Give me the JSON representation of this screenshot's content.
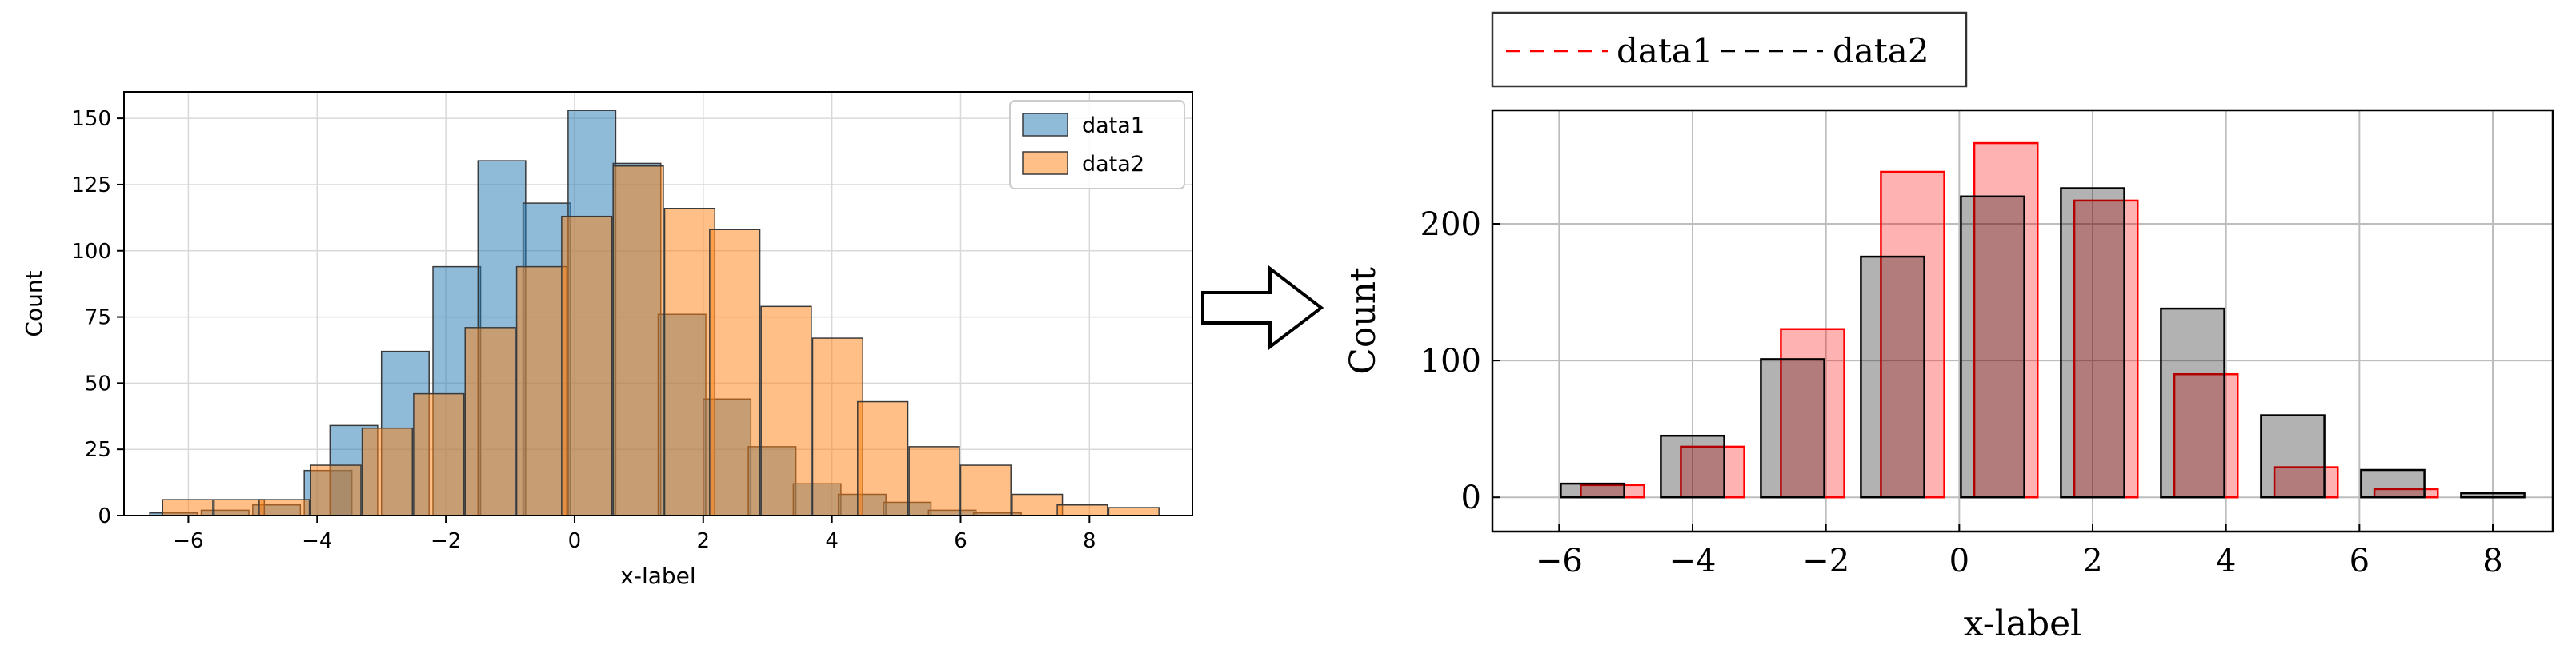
{
  "chart_data": [
    {
      "type": "bar",
      "xlabel": "x-label",
      "ylabel": "Count",
      "xlim": [
        -7,
        9.6
      ],
      "ylim": [
        0,
        160
      ],
      "xticks": [
        -6,
        -4,
        -2,
        0,
        2,
        4,
        6,
        8
      ],
      "xtick_labels": [
        "−6",
        "−4",
        "−2",
        "0",
        "2",
        "4",
        "6",
        "8"
      ],
      "yticks": [
        0,
        25,
        50,
        75,
        100,
        125,
        150
      ],
      "grid": true,
      "legend_position": "top-right",
      "series": [
        {
          "name": "data1",
          "color": "#1f77b4",
          "bins": [
            [
              -6.6,
              1
            ],
            [
              -5.8,
              2
            ],
            [
              -5.0,
              4
            ],
            [
              -4.2,
              17
            ],
            [
              -3.8,
              34
            ],
            [
              -3.0,
              62
            ],
            [
              -2.2,
              94
            ],
            [
              -1.5,
              134
            ],
            [
              -0.8,
              118
            ],
            [
              -0.1,
              153
            ],
            [
              0.6,
              133
            ],
            [
              1.3,
              76
            ],
            [
              2.0,
              44
            ],
            [
              2.7,
              26
            ],
            [
              3.4,
              12
            ],
            [
              4.1,
              8
            ],
            [
              4.8,
              5
            ],
            [
              5.5,
              2
            ],
            [
              6.2,
              1
            ]
          ],
          "bin_width": 0.74
        },
        {
          "name": "data2",
          "color": "#ff7f0e",
          "bins": [
            [
              -6.4,
              6
            ],
            [
              -5.6,
              6
            ],
            [
              -4.9,
              6
            ],
            [
              -4.1,
              19
            ],
            [
              -3.3,
              33
            ],
            [
              -2.5,
              46
            ],
            [
              -1.7,
              71
            ],
            [
              -0.9,
              94
            ],
            [
              -0.2,
              113
            ],
            [
              0.6,
              132
            ],
            [
              1.4,
              116
            ],
            [
              2.1,
              108
            ],
            [
              2.9,
              79
            ],
            [
              3.7,
              67
            ],
            [
              4.4,
              43
            ],
            [
              5.2,
              26
            ],
            [
              6.0,
              19
            ],
            [
              6.8,
              8
            ],
            [
              7.5,
              4
            ],
            [
              8.3,
              3
            ]
          ],
          "bin_width": 0.78
        }
      ]
    },
    {
      "type": "bar",
      "xlabel": "x-label",
      "ylabel": "Count",
      "xlim": [
        -7,
        8.9
      ],
      "ylim": [
        -25,
        283
      ],
      "xticks": [
        -6,
        -4,
        -2,
        0,
        2,
        4,
        6,
        8
      ],
      "xtick_labels": [
        "−6",
        "−4",
        "−2",
        "0",
        "2",
        "4",
        "6",
        "8"
      ],
      "yticks": [
        0,
        100,
        200
      ],
      "grid": true,
      "legend_position": "above",
      "bar_width": 0.95,
      "series": [
        {
          "name": "data1",
          "color": "#ff0000",
          "x": [
            -5.2,
            -3.7,
            -2.2,
            -0.7,
            0.7,
            2.2,
            3.7,
            5.2,
            6.7
          ],
          "values": [
            9,
            37,
            123,
            238,
            259,
            217,
            90,
            22,
            6
          ]
        },
        {
          "name": "data2",
          "color": "#000000",
          "x": [
            -5.5,
            -4.0,
            -2.5,
            -1.0,
            0.5,
            2.0,
            3.5,
            5.0,
            6.5,
            8.0
          ],
          "values": [
            10,
            45,
            101,
            176,
            220,
            226,
            138,
            60,
            20,
            3
          ]
        }
      ]
    }
  ]
}
